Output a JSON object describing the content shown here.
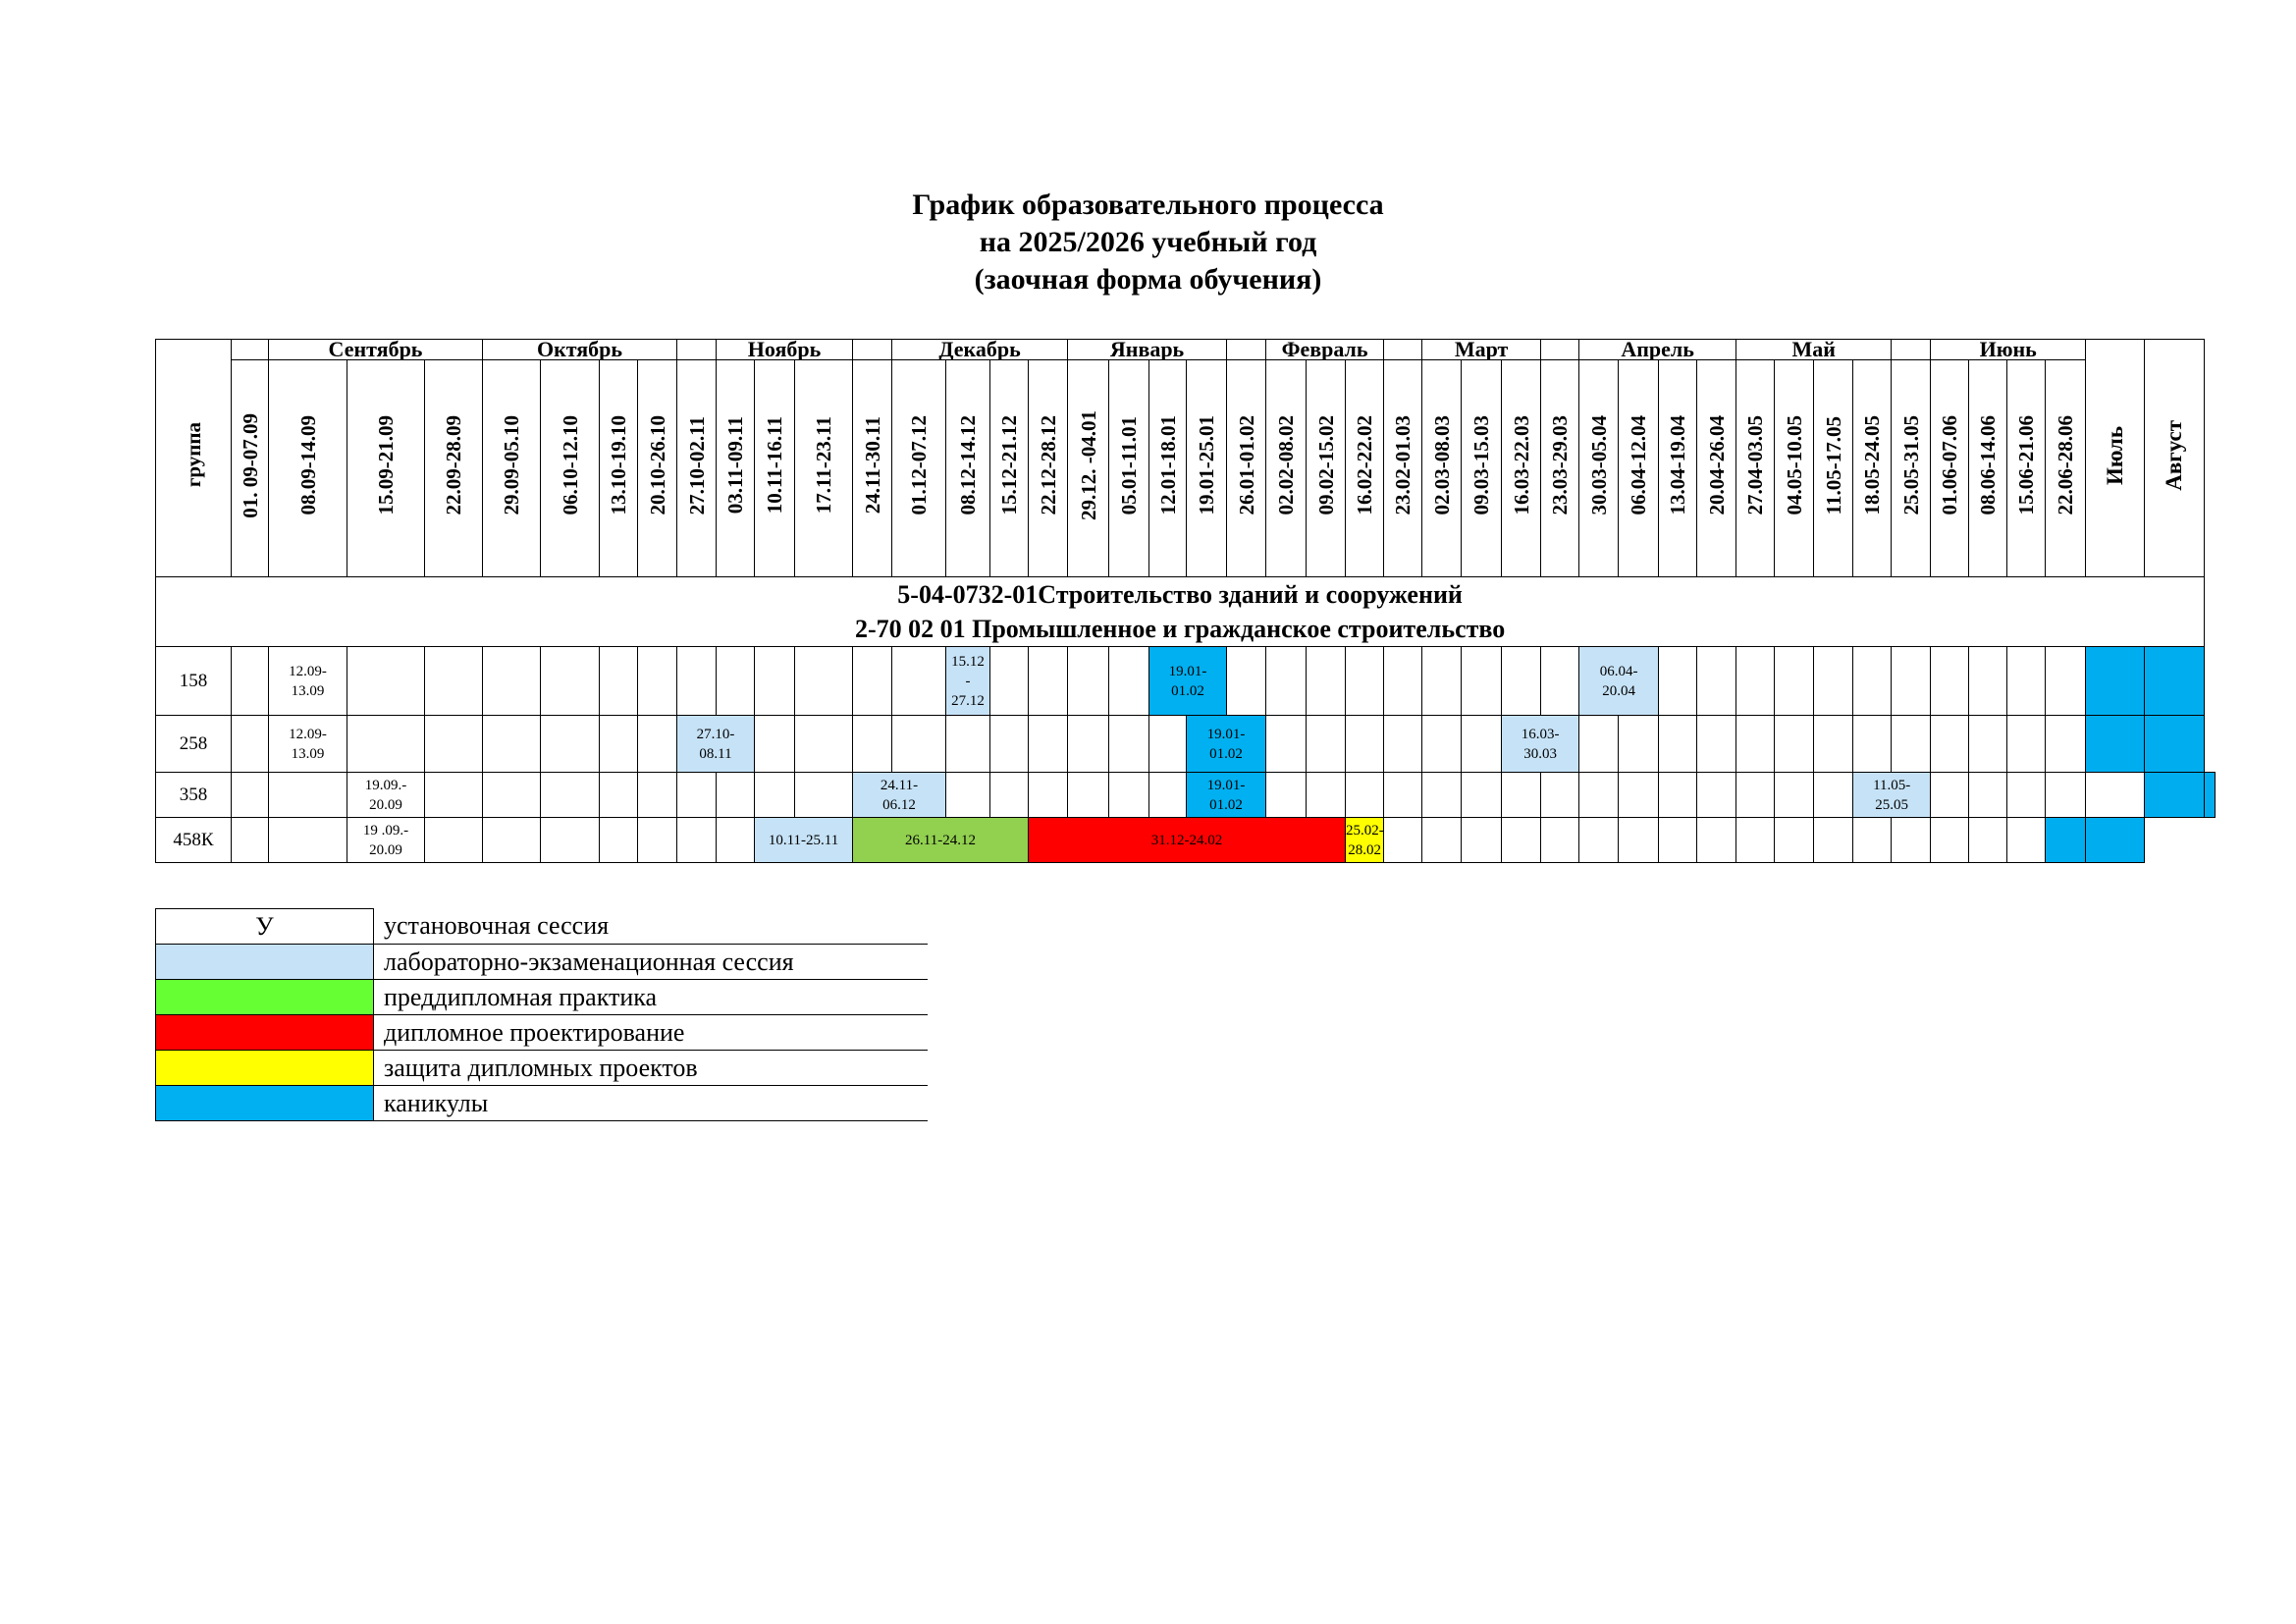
{
  "title": {
    "line1": "График образовательного процесса",
    "line2": "на 2025/2026 учебный год",
    "line3": "(заочная форма обучения)"
  },
  "header": {
    "group_label": "группа",
    "months": [
      "Сентябрь",
      "Октябрь",
      "Ноябрь",
      "Декабрь",
      "Январь",
      "Февраль",
      "Март",
      "Апрель",
      "Май",
      "Июнь",
      "Июль",
      "Август"
    ],
    "weeks": [
      "01. 09-07.09",
      "08.09-14.09",
      "15.09-21.09",
      "22.09-28.09",
      "29.09-05.10",
      "06.10-12.10",
      "13.10-19.10",
      "20.10-26.10",
      "27.10-02.11",
      "03.11-09.11",
      "10.11-16.11",
      "17.11-23.11",
      "24.11-30.11",
      "01.12-07.12",
      "08.12-14.12",
      "15.12-21.12",
      "22.12-28.12",
      "29.12. -04.01",
      "05.01-11.01",
      "12.01-18.01",
      "19.01-25.01",
      "26.01-01.02",
      "02.02-08.02",
      "09.02-15.02",
      "16.02-22.02",
      "23.02-01.03",
      "02.03-08.03",
      "09.03-15.03",
      "16.03-22.03",
      "23.03-29.03",
      "30.03-05.04",
      "06.04-12.04",
      "13.04-19.04",
      "20.04-26.04",
      "27.04-03.05",
      "04.05-10.05",
      "11.05-17.05",
      "18.05-24.05",
      "25.05-31.05",
      "01.06-07.06",
      "08.06-14.06",
      "15.06-21.06",
      "22.06-28.06"
    ]
  },
  "specialty": {
    "line1": "5-04-0732-01Строительство зданий и сооружений",
    "line2": "2-70 02 01 Промышленное и гражданское строительство"
  },
  "groups": [
    {
      "name": "158",
      "cell_a": "12.09-",
      "cell_b": "13.09",
      "dec_a": "15.12",
      "dec_b": "-",
      "dec_c": "27.12",
      "jan_a": "19.01-",
      "jan_b": "01.02",
      "apr_a": "06.04-",
      "apr_b": "20.04"
    },
    {
      "name": "258",
      "cell_a": "12.09-",
      "cell_b": "13.09",
      "nov_a": "27.10-",
      "nov_b": "08.11",
      "jan_a": "19.01-",
      "jan_b": "01.02",
      "mar_a": "16.03-",
      "mar_b": "30.03"
    },
    {
      "name": "358",
      "sep_a": "19.09.-",
      "sep_b": "20.09",
      "nov_a": "24.11-",
      "nov_b": "06.12",
      "jan_a": "19.01-",
      "jan_b": "01.02",
      "may_a": "11.05-",
      "may_b": "25.05"
    },
    {
      "name": "458К",
      "sep_a": "19 .09.-",
      "sep_b": "20.09",
      "lab": "10.11-25.11",
      "pre": "26.11-24.12",
      "dip": "31.12-24.02",
      "def_a": "25.02-",
      "def_b": "28.02"
    }
  ],
  "legend": [
    {
      "symbol": "У",
      "text": "установочная сессия",
      "color": "#ffffff"
    },
    {
      "symbol": "",
      "text": "лабораторно-экзаменационная сессия",
      "color": "#c6e2f6"
    },
    {
      "symbol": "",
      "text": "преддипломная практика",
      "color": "#66ff33"
    },
    {
      "symbol": "",
      "text": "дипломное проектирование",
      "color": "#ff0000"
    },
    {
      "symbol": "",
      "text": "защита дипломных проектов",
      "color": "#ffff00"
    },
    {
      "symbol": "",
      "text": "каникулы",
      "color": "#00b0f0"
    }
  ]
}
